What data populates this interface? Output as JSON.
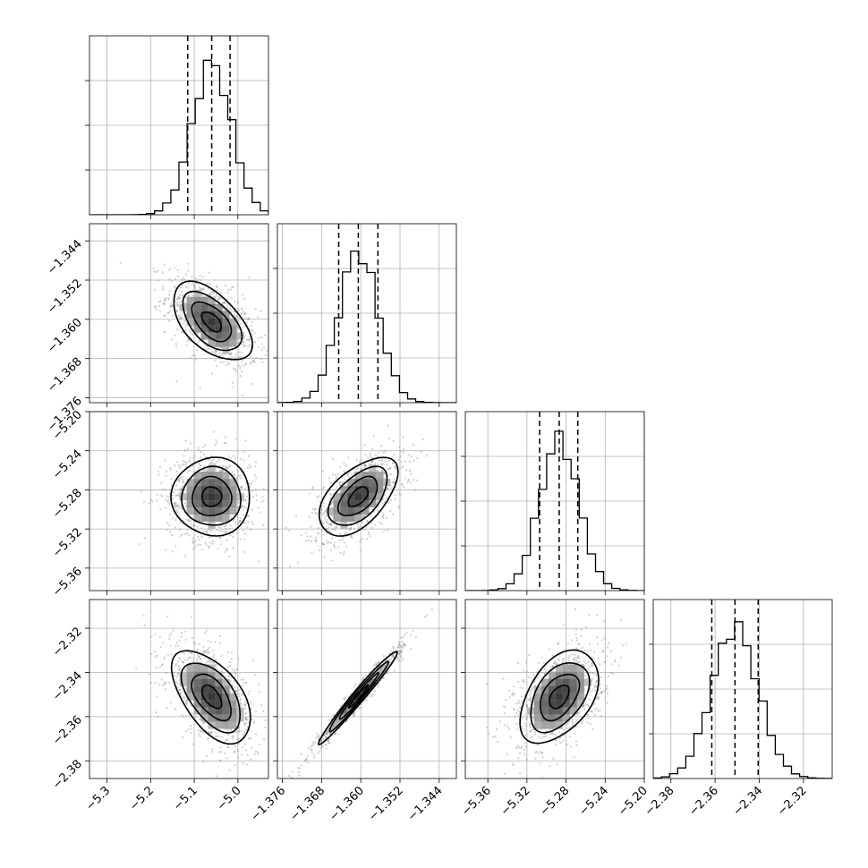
{
  "chart_data": {
    "type": "corner",
    "grid": true,
    "parameters": [
      {
        "index": 0,
        "range": [
          -5.34,
          -4.93
        ],
        "mean": -5.06,
        "sigma": 0.045,
        "quantiles": [
          -5.115,
          -5.06,
          -5.018
        ],
        "ticks": [
          -5.3,
          -5.2,
          -5.1,
          -5.0
        ],
        "tick_labels": [
          "−5.3",
          "−5.2",
          "−5.1",
          "−5.0"
        ]
      },
      {
        "index": 1,
        "range": [
          -1.377,
          -1.3405
        ],
        "mean": -1.3605,
        "sigma": 0.004,
        "quantiles": [
          -1.3645,
          -1.3605,
          -1.3565
        ],
        "ticks": [
          -1.376,
          -1.368,
          -1.36,
          -1.352,
          -1.344
        ],
        "tick_labels": [
          "−1.376",
          "−1.368",
          "−1.360",
          "−1.352",
          "−1.344"
        ]
      },
      {
        "index": 2,
        "range": [
          -5.383,
          -5.2
        ],
        "mean": -5.287,
        "sigma": 0.02,
        "quantiles": [
          -5.307,
          -5.287,
          -5.268
        ],
        "ticks": [
          -5.36,
          -5.32,
          -5.28,
          -5.24,
          -5.2
        ],
        "tick_labels": [
          "−5.36",
          "−5.32",
          "−5.28",
          "−5.24",
          "−5.20"
        ]
      },
      {
        "index": 3,
        "range": [
          -2.388,
          -2.307
        ],
        "mean": -2.351,
        "sigma": 0.0105,
        "quantiles": [
          -2.3615,
          -2.351,
          -2.3405
        ],
        "ticks": [
          -2.38,
          -2.36,
          -2.34,
          -2.32
        ],
        "tick_labels": [
          "−2.38",
          "−2.36",
          "−2.34",
          "−2.32"
        ]
      }
    ],
    "correlations": [
      {
        "i": 1,
        "j": 0,
        "rho": -0.55
      },
      {
        "i": 2,
        "j": 0,
        "rho": 0.0
      },
      {
        "i": 2,
        "j": 1,
        "rho": 0.55
      },
      {
        "i": 3,
        "j": 0,
        "rho": -0.55
      },
      {
        "i": 3,
        "j": 1,
        "rho": 0.98
      },
      {
        "i": 3,
        "j": 2,
        "rho": 0.45
      }
    ],
    "contour_levels_sigma": [
      0.5,
      1.0,
      1.5,
      2.0
    ],
    "n_samples_shown": 900
  }
}
